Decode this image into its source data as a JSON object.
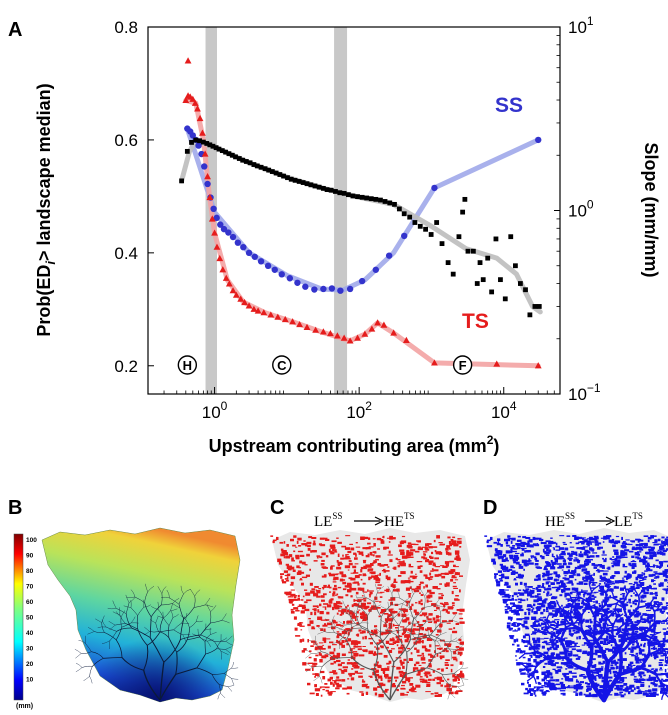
{
  "panel_labels": {
    "a": "A",
    "b": "B",
    "c": "C",
    "d": "D"
  },
  "chart_data": {
    "type": "scatter",
    "xlabel": "Upstream contributing area (mm",
    "xlabel_sup": "2",
    "xlabel_close": ")",
    "ylabel": "Prob(ED",
    "ylabel_sub": "i",
    "ylabel_rest": "> landscape median)",
    "y2label": "Slope (mm/mm)",
    "x_scale": "log",
    "xlim": [
      0.12,
      60000
    ],
    "ylim": [
      0.15,
      0.8
    ],
    "y2_scale": "log",
    "y2lim": [
      0.1,
      10
    ],
    "y_ticks": [
      0.2,
      0.4,
      0.6,
      0.8
    ],
    "y_tick_labels": [
      "0.2",
      "0.4",
      "0.6",
      "0.8"
    ],
    "x_ticks": [
      1,
      100,
      10000
    ],
    "x_tick_labels": [
      {
        "base": "10",
        "exp": "0"
      },
      {
        "base": "10",
        "exp": "2"
      },
      {
        "base": "10",
        "exp": "4"
      }
    ],
    "y2_ticks": [
      0.1,
      1,
      10
    ],
    "y2_tick_labels": [
      {
        "base": "10",
        "exp": "−1"
      },
      {
        "base": "10",
        "exp": "0"
      },
      {
        "base": "10",
        "exp": "1"
      }
    ],
    "gray_bands": [
      [
        0.75,
        1.08
      ],
      [
        45,
        68
      ]
    ],
    "region_labels": [
      {
        "text": "H",
        "x": 0.42
      },
      {
        "text": "C",
        "x": 8.5
      },
      {
        "text": "F",
        "x": 2700
      }
    ],
    "series": [
      {
        "name": "SS",
        "color": "#3333cc",
        "line_color": "#a0a8ea",
        "axis": "left",
        "marker": "circle",
        "points": [
          [
            0.42,
            0.62
          ],
          [
            0.46,
            0.615
          ],
          [
            0.5,
            0.608
          ],
          [
            0.55,
            0.6
          ],
          [
            0.6,
            0.59
          ],
          [
            0.66,
            0.575
          ],
          [
            0.72,
            0.553
          ],
          [
            0.8,
            0.522
          ],
          [
            0.88,
            0.498
          ],
          [
            0.97,
            0.478
          ],
          [
            1.07,
            0.462
          ],
          [
            1.2,
            0.45
          ],
          [
            1.35,
            0.442
          ],
          [
            1.55,
            0.436
          ],
          [
            1.8,
            0.428
          ],
          [
            2.1,
            0.418
          ],
          [
            2.5,
            0.41
          ],
          [
            3.0,
            0.4
          ],
          [
            3.6,
            0.393
          ],
          [
            4.4,
            0.385
          ],
          [
            5.5,
            0.377
          ],
          [
            6.8,
            0.37
          ],
          [
            8.5,
            0.362
          ],
          [
            11,
            0.355
          ],
          [
            14,
            0.347
          ],
          [
            18,
            0.34
          ],
          [
            24,
            0.335
          ],
          [
            32,
            0.336
          ],
          [
            42,
            0.337
          ],
          [
            55,
            0.333
          ],
          [
            75,
            0.336
          ],
          [
            110,
            0.35
          ],
          [
            170,
            0.37
          ],
          [
            260,
            0.395
          ],
          [
            420,
            0.43
          ],
          [
            1100,
            0.515
          ],
          [
            30000,
            0.6
          ]
        ],
        "line": [
          [
            0.42,
            0.62
          ],
          [
            1,
            0.472
          ],
          [
            3,
            0.4
          ],
          [
            10,
            0.36
          ],
          [
            30,
            0.336
          ],
          [
            60,
            0.334
          ],
          [
            120,
            0.352
          ],
          [
            300,
            0.4
          ],
          [
            1100,
            0.515
          ],
          [
            30000,
            0.6
          ]
        ]
      },
      {
        "name": "TS",
        "color": "#e51c1c",
        "line_color": "#f3a3a3",
        "axis": "left",
        "marker": "triangle",
        "points": [
          [
            0.43,
            0.74
          ],
          [
            0.4,
            0.67
          ],
          [
            0.43,
            0.678
          ],
          [
            0.46,
            0.676
          ],
          [
            0.5,
            0.672
          ],
          [
            0.54,
            0.665
          ],
          [
            0.58,
            0.655
          ],
          [
            0.63,
            0.638
          ],
          [
            0.68,
            0.612
          ],
          [
            0.74,
            0.575
          ],
          [
            0.8,
            0.535
          ],
          [
            0.86,
            0.498
          ],
          [
            0.93,
            0.46
          ],
          [
            1.0,
            0.435
          ],
          [
            1.08,
            0.41
          ],
          [
            1.18,
            0.39
          ],
          [
            1.3,
            0.37
          ],
          [
            1.45,
            0.355
          ],
          [
            1.6,
            0.345
          ],
          [
            1.8,
            0.333
          ],
          [
            2.0,
            0.325
          ],
          [
            2.3,
            0.318
          ],
          [
            2.6,
            0.312
          ],
          [
            3.0,
            0.306
          ],
          [
            3.5,
            0.3
          ],
          [
            4.0,
            0.297
          ],
          [
            4.8,
            0.294
          ],
          [
            6,
            0.29
          ],
          [
            7.5,
            0.286
          ],
          [
            9.5,
            0.282
          ],
          [
            12,
            0.278
          ],
          [
            15,
            0.273
          ],
          [
            19,
            0.268
          ],
          [
            25,
            0.263
          ],
          [
            32,
            0.26
          ],
          [
            40,
            0.257
          ],
          [
            50,
            0.253
          ],
          [
            62,
            0.249
          ],
          [
            75,
            0.244
          ],
          [
            95,
            0.249
          ],
          [
            120,
            0.256
          ],
          [
            150,
            0.265
          ],
          [
            180,
            0.276
          ],
          [
            220,
            0.272
          ],
          [
            300,
            0.258
          ],
          [
            450,
            0.245
          ],
          [
            1100,
            0.205
          ],
          [
            3000,
            0.205
          ],
          [
            8000,
            0.203
          ],
          [
            30000,
            0.2
          ]
        ],
        "line": [
          [
            0.4,
            0.67
          ],
          [
            0.55,
            0.665
          ],
          [
            0.7,
            0.6
          ],
          [
            0.85,
            0.5
          ],
          [
            1,
            0.435
          ],
          [
            1.5,
            0.352
          ],
          [
            2.5,
            0.313
          ],
          [
            5,
            0.294
          ],
          [
            12,
            0.278
          ],
          [
            30,
            0.26
          ],
          [
            75,
            0.244
          ],
          [
            120,
            0.256
          ],
          [
            180,
            0.276
          ],
          [
            300,
            0.258
          ],
          [
            1100,
            0.205
          ],
          [
            30000,
            0.2
          ]
        ]
      },
      {
        "name": "slope",
        "color": "#000000",
        "line_color": "#bdbdbd",
        "axis": "right",
        "marker": "square",
        "points": [
          [
            0.35,
            1.45
          ],
          [
            0.42,
            2.1
          ],
          [
            0.48,
            2.35
          ],
          [
            0.55,
            2.42
          ],
          [
            0.62,
            2.4
          ],
          [
            0.7,
            2.36
          ],
          [
            0.78,
            2.32
          ],
          [
            0.86,
            2.28
          ],
          [
            0.95,
            2.24
          ],
          [
            1.05,
            2.2
          ],
          [
            1.15,
            2.16
          ],
          [
            1.28,
            2.12
          ],
          [
            1.42,
            2.08
          ],
          [
            1.58,
            2.04
          ],
          [
            1.76,
            2.0
          ],
          [
            1.95,
            1.96
          ],
          [
            2.2,
            1.92
          ],
          [
            2.45,
            1.88
          ],
          [
            2.75,
            1.85
          ],
          [
            3.1,
            1.82
          ],
          [
            3.5,
            1.78
          ],
          [
            3.9,
            1.75
          ],
          [
            4.4,
            1.72
          ],
          [
            5.0,
            1.69
          ],
          [
            5.6,
            1.66
          ],
          [
            6.3,
            1.63
          ],
          [
            7.1,
            1.6
          ],
          [
            8.0,
            1.57
          ],
          [
            9.0,
            1.54
          ],
          [
            10.2,
            1.51
          ],
          [
            11.5,
            1.48
          ],
          [
            13,
            1.46
          ],
          [
            14.8,
            1.44
          ],
          [
            16.8,
            1.42
          ],
          [
            19,
            1.4
          ],
          [
            21.5,
            1.38
          ],
          [
            24.5,
            1.36
          ],
          [
            28,
            1.34
          ],
          [
            32,
            1.32
          ],
          [
            36,
            1.3
          ],
          [
            41,
            1.29
          ],
          [
            47,
            1.27
          ],
          [
            54,
            1.25
          ],
          [
            62,
            1.24
          ],
          [
            71,
            1.22
          ],
          [
            82,
            1.2
          ],
          [
            95,
            1.19
          ],
          [
            110,
            1.18
          ],
          [
            127,
            1.17
          ],
          [
            147,
            1.16
          ],
          [
            170,
            1.15
          ],
          [
            197,
            1.14
          ],
          [
            228,
            1.12
          ],
          [
            265,
            1.1
          ],
          [
            308,
            1.08
          ],
          [
            360,
            1.02
          ],
          [
            420,
            0.96
          ],
          [
            500,
            0.92
          ],
          [
            590,
            0.86
          ],
          [
            700,
            0.82
          ],
          [
            830,
            0.79
          ],
          [
            990,
            0.74
          ],
          [
            1180,
            0.86
          ],
          [
            1400,
            0.66
          ],
          [
            1700,
            0.52
          ],
          [
            2000,
            0.45
          ],
          [
            2400,
            0.72
          ],
          [
            2700,
            0.98
          ],
          [
            2900,
            1.15
          ],
          [
            3200,
            0.6
          ],
          [
            3800,
            0.6
          ],
          [
            4300,
            0.4
          ],
          [
            4700,
            0.52
          ],
          [
            5200,
            0.42
          ],
          [
            6000,
            0.55
          ],
          [
            6800,
            0.36
          ],
          [
            7800,
            0.7
          ],
          [
            9000,
            0.42
          ],
          [
            10500,
            0.33
          ],
          [
            12500,
            0.72
          ],
          [
            14500,
            0.5
          ],
          [
            17000,
            0.4
          ],
          [
            20000,
            0.37
          ],
          [
            23000,
            0.27
          ],
          [
            27000,
            0.3
          ],
          [
            31000,
            0.3
          ]
        ],
        "line": [
          [
            0.35,
            1.45
          ],
          [
            0.45,
            2.1
          ],
          [
            0.55,
            2.42
          ],
          [
            1,
            2.22
          ],
          [
            3,
            1.82
          ],
          [
            10,
            1.52
          ],
          [
            30,
            1.33
          ],
          [
            100,
            1.18
          ],
          [
            300,
            1.08
          ],
          [
            1000,
            0.82
          ],
          [
            3000,
            0.62
          ],
          [
            8000,
            0.55
          ],
          [
            15000,
            0.45
          ],
          [
            25000,
            0.3
          ],
          [
            32000,
            0.28
          ]
        ]
      }
    ]
  },
  "panel_c": {
    "from": "LE",
    "from_sup": "SS",
    "to": "HE",
    "to_sup": "TS",
    "color": "#e51c1c"
  },
  "panel_d": {
    "from": "HE",
    "from_sup": "SS",
    "to": "LE",
    "to_sup": "TS",
    "color": "#1414e6"
  },
  "colorbar": {
    "ticks": [
      "100",
      "90",
      "80",
      "70",
      "60",
      "50",
      "40",
      "30",
      "20",
      "10"
    ],
    "unit": "(mm)"
  }
}
